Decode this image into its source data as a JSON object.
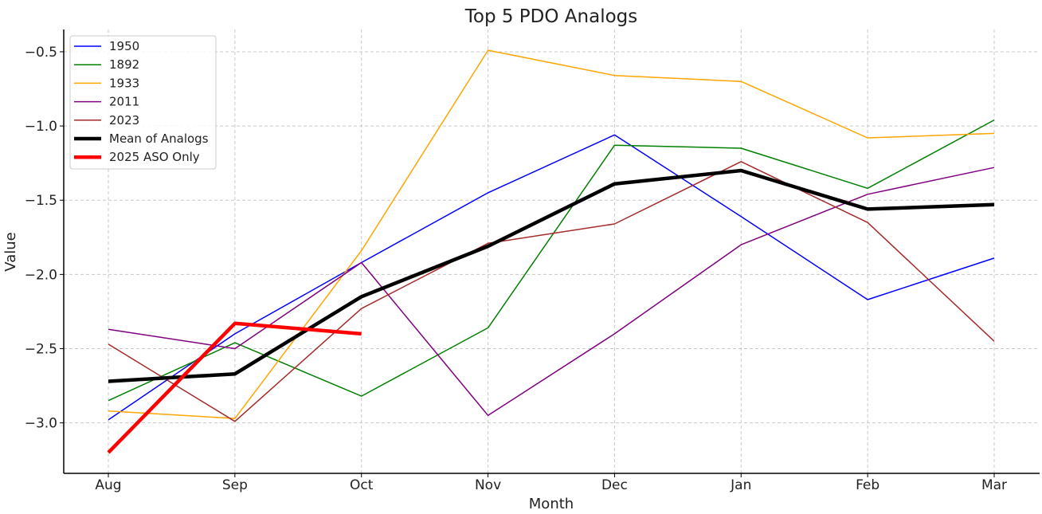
{
  "chart_data": {
    "type": "line",
    "title": "Top 5 PDO Analogs",
    "xlabel": "Month",
    "ylabel": "Value",
    "categories": [
      "Aug",
      "Sep",
      "Oct",
      "Nov",
      "Dec",
      "Jan",
      "Feb",
      "Mar"
    ],
    "ylim": [
      -3.34,
      -0.35
    ],
    "yticks": [
      -3.0,
      -2.5,
      -2.0,
      -1.5,
      -1.0,
      -0.5
    ],
    "ytick_labels": [
      "−3.0",
      "−2.5",
      "−2.0",
      "−1.5",
      "−1.0",
      "−0.5"
    ],
    "grid": true,
    "legend_position": "top-left",
    "series": [
      {
        "name": "1950",
        "color": "#0000ff",
        "width": "thin",
        "values": [
          -2.98,
          -2.4,
          -1.92,
          -1.45,
          -1.06,
          -1.61,
          -2.17,
          -1.89
        ]
      },
      {
        "name": "1892",
        "color": "#008000",
        "width": "thin",
        "values": [
          -2.85,
          -2.46,
          -2.82,
          -2.36,
          -1.13,
          -1.15,
          -1.42,
          -0.96
        ]
      },
      {
        "name": "1933",
        "color": "#ffa500",
        "width": "thin",
        "values": [
          -2.92,
          -2.97,
          -1.84,
          -0.49,
          -0.66,
          -0.7,
          -1.08,
          -1.05
        ]
      },
      {
        "name": "2011",
        "color": "#800080",
        "width": "thin",
        "values": [
          -2.37,
          -2.5,
          -1.92,
          -2.95,
          -2.4,
          -1.8,
          -1.46,
          -1.28
        ]
      },
      {
        "name": "2023",
        "color": "#a52a2a",
        "width": "thin",
        "values": [
          -2.47,
          -2.99,
          -2.23,
          -1.79,
          -1.66,
          -1.24,
          -1.65,
          -2.45
        ]
      },
      {
        "name": "Mean of Analogs",
        "color": "#000000",
        "width": "thick",
        "values": [
          -2.72,
          -2.67,
          -2.15,
          -1.81,
          -1.39,
          -1.3,
          -1.56,
          -1.53
        ]
      },
      {
        "name": "2025 ASO Only",
        "color": "#ff0000",
        "width": "thick",
        "values": [
          -3.2,
          -2.33,
          -2.4,
          null,
          null,
          null,
          null,
          null
        ]
      }
    ]
  }
}
